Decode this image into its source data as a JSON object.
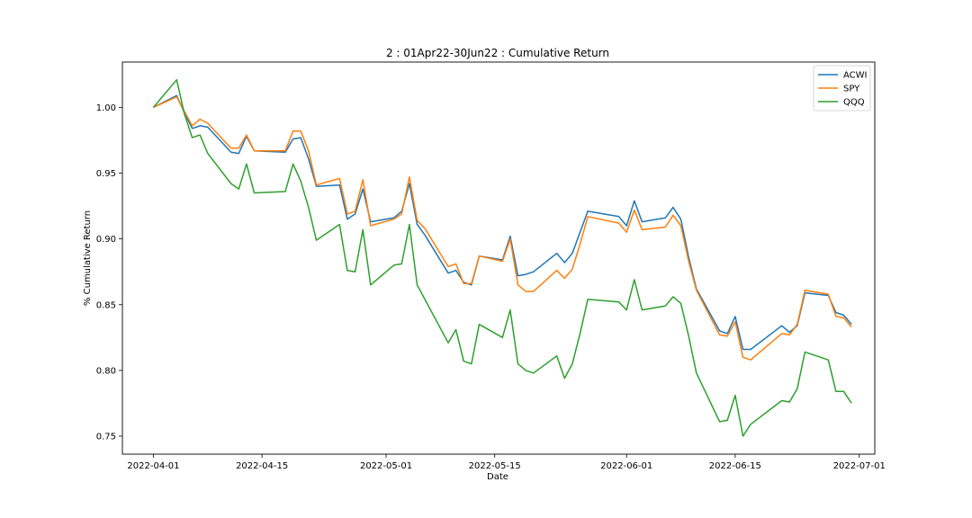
{
  "chart_data": {
    "type": "line",
    "title": "2 : 01Apr22-30Jun22 : Cumulative Return",
    "xlabel": "Date",
    "ylabel": "% Cumulative Return",
    "x_axis": {
      "type": "date",
      "range": [
        "2022-03-28",
        "2022-07-03"
      ],
      "ticks": [
        "2022-04-01",
        "2022-04-15",
        "2022-05-01",
        "2022-05-15",
        "2022-06-01",
        "2022-06-15",
        "2022-07-01"
      ]
    },
    "y_axis": {
      "range": [
        0.7363,
        1.0345
      ],
      "ticks": [
        0.75,
        0.8,
        0.85,
        0.9,
        0.95,
        1.0
      ],
      "tick_labels": [
        "0.75",
        "0.80",
        "0.85",
        "0.90",
        "0.95",
        "1.00"
      ]
    },
    "grid": false,
    "legend_position": "top-right",
    "dates": [
      "2022-04-01",
      "2022-04-04",
      "2022-04-05",
      "2022-04-06",
      "2022-04-07",
      "2022-04-08",
      "2022-04-11",
      "2022-04-12",
      "2022-04-13",
      "2022-04-14",
      "2022-04-18",
      "2022-04-19",
      "2022-04-20",
      "2022-04-21",
      "2022-04-22",
      "2022-04-25",
      "2022-04-26",
      "2022-04-27",
      "2022-04-28",
      "2022-04-29",
      "2022-05-02",
      "2022-05-03",
      "2022-05-04",
      "2022-05-05",
      "2022-05-06",
      "2022-05-09",
      "2022-05-10",
      "2022-05-11",
      "2022-05-12",
      "2022-05-13",
      "2022-05-16",
      "2022-05-17",
      "2022-05-18",
      "2022-05-19",
      "2022-05-20",
      "2022-05-23",
      "2022-05-24",
      "2022-05-25",
      "2022-05-26",
      "2022-05-27",
      "2022-05-31",
      "2022-06-01",
      "2022-06-02",
      "2022-06-03",
      "2022-06-06",
      "2022-06-07",
      "2022-06-08",
      "2022-06-09",
      "2022-06-10",
      "2022-06-13",
      "2022-06-14",
      "2022-06-15",
      "2022-06-16",
      "2022-06-17",
      "2022-06-21",
      "2022-06-22",
      "2022-06-23",
      "2022-06-24",
      "2022-06-27",
      "2022-06-28",
      "2022-06-29",
      "2022-06-30"
    ],
    "series": [
      {
        "name": "ACWI",
        "color": "#1f77b4",
        "values": [
          1.0,
          1.009,
          0.996,
          0.984,
          0.986,
          0.985,
          0.966,
          0.965,
          0.978,
          0.967,
          0.966,
          0.976,
          0.977,
          0.961,
          0.94,
          0.941,
          0.915,
          0.919,
          0.938,
          0.913,
          0.916,
          0.921,
          0.942,
          0.911,
          0.903,
          0.874,
          0.876,
          0.867,
          0.865,
          0.887,
          0.884,
          0.902,
          0.872,
          0.873,
          0.875,
          0.889,
          0.882,
          0.889,
          0.905,
          0.921,
          0.917,
          0.91,
          0.929,
          0.913,
          0.916,
          0.924,
          0.915,
          0.886,
          0.862,
          0.83,
          0.828,
          0.841,
          0.816,
          0.816,
          0.834,
          0.829,
          0.834,
          0.859,
          0.857,
          0.844,
          0.842,
          0.835
        ]
      },
      {
        "name": "SPY",
        "color": "#ff7f0e",
        "values": [
          1.0,
          1.008,
          0.997,
          0.986,
          0.991,
          0.988,
          0.969,
          0.969,
          0.979,
          0.967,
          0.967,
          0.982,
          0.982,
          0.967,
          0.941,
          0.946,
          0.919,
          0.921,
          0.945,
          0.91,
          0.915,
          0.919,
          0.947,
          0.914,
          0.908,
          0.879,
          0.881,
          0.866,
          0.866,
          0.887,
          0.883,
          0.9,
          0.865,
          0.86,
          0.86,
          0.876,
          0.87,
          0.877,
          0.896,
          0.917,
          0.912,
          0.905,
          0.922,
          0.907,
          0.909,
          0.918,
          0.91,
          0.883,
          0.861,
          0.827,
          0.826,
          0.837,
          0.81,
          0.808,
          0.828,
          0.827,
          0.835,
          0.861,
          0.858,
          0.841,
          0.84,
          0.833
        ]
      },
      {
        "name": "QQQ",
        "color": "#2ca02c",
        "values": [
          1.0,
          1.021,
          0.995,
          0.977,
          0.979,
          0.965,
          0.942,
          0.938,
          0.957,
          0.935,
          0.936,
          0.957,
          0.944,
          0.924,
          0.899,
          0.911,
          0.876,
          0.875,
          0.907,
          0.865,
          0.88,
          0.881,
          0.911,
          0.865,
          0.854,
          0.821,
          0.831,
          0.807,
          0.805,
          0.835,
          0.825,
          0.846,
          0.805,
          0.8,
          0.798,
          0.811,
          0.794,
          0.805,
          0.828,
          0.854,
          0.852,
          0.846,
          0.869,
          0.846,
          0.849,
          0.856,
          0.851,
          0.826,
          0.798,
          0.761,
          0.762,
          0.781,
          0.75,
          0.759,
          0.777,
          0.776,
          0.786,
          0.814,
          0.808,
          0.784,
          0.784,
          0.775
        ]
      }
    ]
  }
}
